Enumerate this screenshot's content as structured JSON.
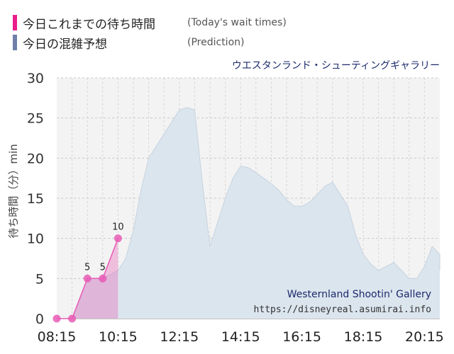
{
  "legend": {
    "actual": {
      "label": "今日これまでの待ち時間",
      "en": "(Today's wait times)",
      "color": "#e91e8c"
    },
    "prediction": {
      "label": "今日の混雑予想",
      "en": "(Prediction)",
      "color": "#6f7fa8"
    }
  },
  "attraction_name_ja": "ウエスタンランド・シューティングギャラリー",
  "watermark": {
    "name_en": "Westernland Shootin' Gallery",
    "url": "https://disneyreal.asumirai.info"
  },
  "chart_data": {
    "type": "area",
    "ylabel": "待ち時間（分）min",
    "ylim": [
      0,
      30
    ],
    "yticks": [
      0,
      5,
      10,
      15,
      20,
      25,
      30
    ],
    "xlim": [
      "08:15",
      "20:45"
    ],
    "xticks": [
      "08:15",
      "10:15",
      "12:15",
      "14:15",
      "16:15",
      "18:15",
      "20:15"
    ],
    "grid": true,
    "series": [
      {
        "role": "prediction",
        "color": "#dbe5ee",
        "points": [
          [
            "08:15",
            0
          ],
          [
            "08:30",
            0
          ],
          [
            "08:45",
            0
          ],
          [
            "09:00",
            2.5
          ],
          [
            "09:15",
            5
          ],
          [
            "09:30",
            5
          ],
          [
            "09:45",
            5
          ],
          [
            "10:00",
            5.5
          ],
          [
            "10:15",
            6
          ],
          [
            "10:30",
            7.5
          ],
          [
            "10:45",
            11
          ],
          [
            "11:00",
            16
          ],
          [
            "11:15",
            20
          ],
          [
            "11:30",
            21.5
          ],
          [
            "11:45",
            23
          ],
          [
            "12:00",
            24.5
          ],
          [
            "12:15",
            26
          ],
          [
            "12:30",
            26.3
          ],
          [
            "12:45",
            26
          ],
          [
            "13:00",
            17
          ],
          [
            "13:15",
            9
          ],
          [
            "13:30",
            12
          ],
          [
            "13:45",
            15
          ],
          [
            "14:00",
            17.5
          ],
          [
            "14:15",
            19
          ],
          [
            "14:30",
            18.8
          ],
          [
            "14:45",
            18.2
          ],
          [
            "15:00",
            17.5
          ],
          [
            "15:15",
            16.8
          ],
          [
            "15:30",
            16
          ],
          [
            "15:45",
            14.8
          ],
          [
            "16:00",
            14
          ],
          [
            "16:15",
            14
          ],
          [
            "16:30",
            14.5
          ],
          [
            "16:45",
            15.5
          ],
          [
            "17:00",
            16.5
          ],
          [
            "17:15",
            17
          ],
          [
            "17:30",
            15.5
          ],
          [
            "17:45",
            14
          ],
          [
            "18:00",
            10.5
          ],
          [
            "18:15",
            8
          ],
          [
            "18:30",
            6.8
          ],
          [
            "18:45",
            6
          ],
          [
            "19:00",
            6.5
          ],
          [
            "19:15",
            7
          ],
          [
            "19:30",
            6
          ],
          [
            "19:45",
            5
          ],
          [
            "20:00",
            5
          ],
          [
            "20:15",
            6.5
          ],
          [
            "20:30",
            9
          ],
          [
            "20:45",
            8
          ],
          [
            "21:00",
            6
          ]
        ]
      },
      {
        "role": "actual",
        "color": "#e75bb5",
        "points": [
          [
            "08:15",
            0
          ],
          [
            "08:45",
            0
          ],
          [
            "09:15",
            5
          ],
          [
            "09:45",
            5
          ],
          [
            "10:15",
            10
          ]
        ],
        "labels": [
          "",
          "",
          "5",
          "5",
          "10"
        ]
      }
    ]
  }
}
